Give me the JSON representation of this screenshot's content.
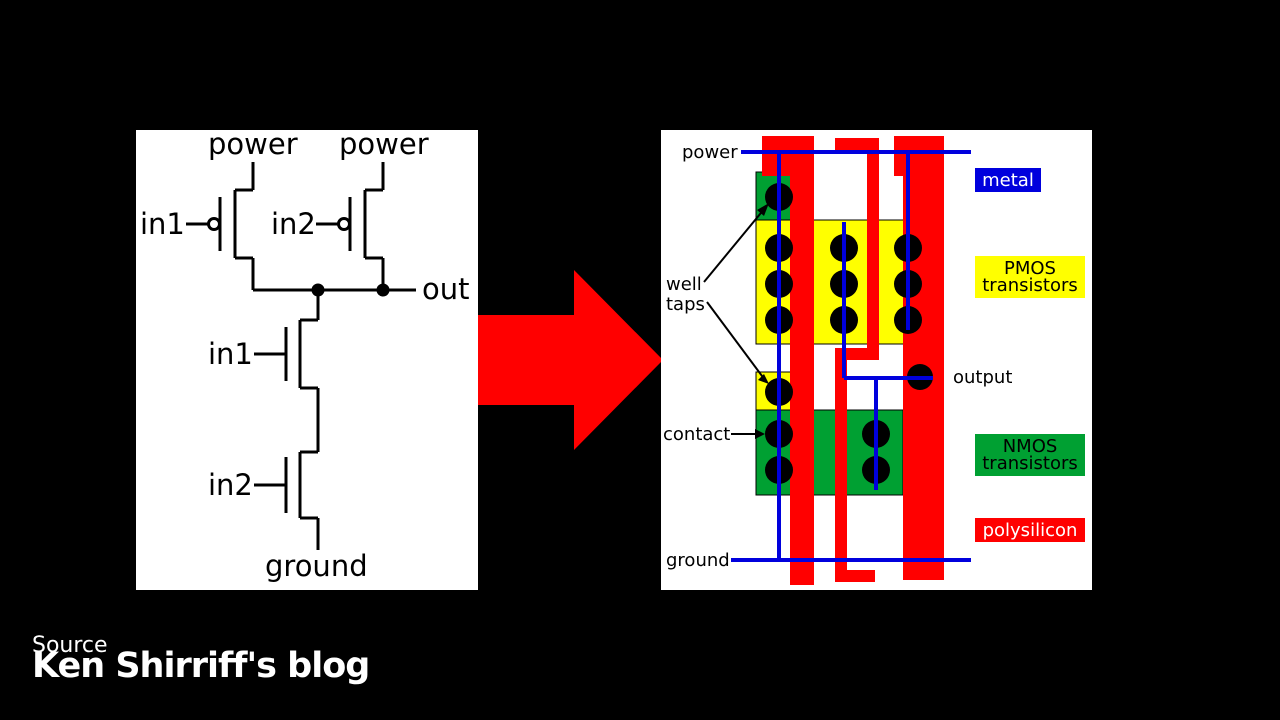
{
  "schematic": {
    "power_left": "power",
    "power_right": "power",
    "in1_top": "in1",
    "in2_top": "in2",
    "out": "out",
    "in1_bottom": "in1",
    "in2_bottom": "in2",
    "ground": "ground"
  },
  "layout": {
    "power": "power",
    "well_taps_line1": "well",
    "well_taps_line2": "taps",
    "contact": "contact",
    "ground": "ground",
    "output": "output"
  },
  "legend": {
    "metal": {
      "label": "metal",
      "color": "#0000dd",
      "text_color": "#ffffff"
    },
    "pmos": {
      "line1": "PMOS",
      "line2": "transistors",
      "color": "#ffff00",
      "text_color": "#000000"
    },
    "nmos": {
      "line1": "NMOS",
      "line2": "transistors",
      "color": "#00a032",
      "text_color": "#000000"
    },
    "poly": {
      "label": "polysilicon",
      "color": "#ff0000",
      "text_color": "#ffffff"
    }
  },
  "colors": {
    "arrow": "#ff0000",
    "background": "#000000"
  },
  "source": {
    "caption": "Source",
    "name": "Ken Shirriff's blog"
  }
}
